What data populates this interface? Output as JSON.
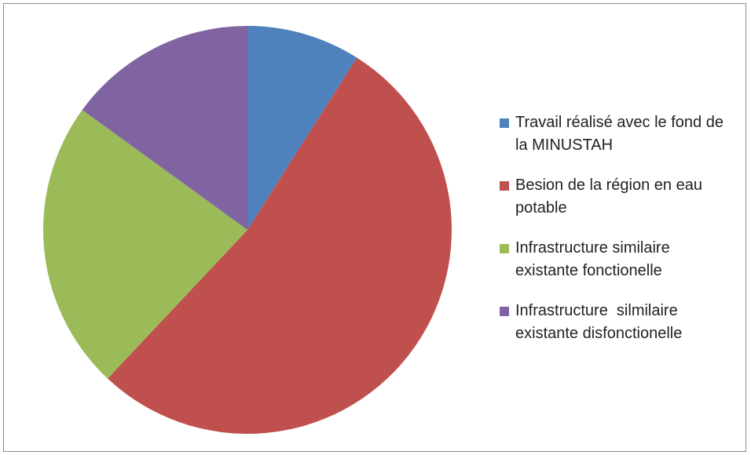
{
  "chart_data": {
    "type": "pie",
    "categories": [
      "Travail réalisé avec le fond de la MINUSTAH",
      "Besion de la région en eau potable",
      "Infrastructure similaire existante fonctionelle",
      "Infrastructure  silmilaire existante disfonctionelle"
    ],
    "values": [
      9,
      53,
      23,
      15
    ],
    "colors": [
      "#4f81bd",
      "#c0504d",
      "#9bbb59",
      "#8064a2"
    ],
    "legend": "right"
  }
}
